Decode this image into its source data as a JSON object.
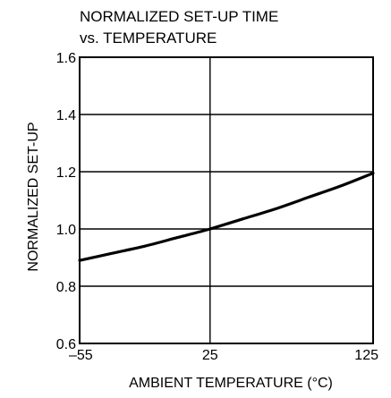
{
  "chart_data": {
    "type": "line",
    "title_line1": "NORMALIZED SET-UP TIME",
    "title_line2": "vs. TEMPERATURE",
    "xlabel": "AMBIENT TEMPERATURE (°C)",
    "ylabel": "NORMALIZED SET-UP",
    "xlim": [
      -55,
      125
    ],
    "ylim": [
      0.6,
      1.6
    ],
    "x_ticks": [
      -55,
      25,
      125
    ],
    "x_tick_labels": [
      "–55",
      "25",
      "125"
    ],
    "y_ticks": [
      0.6,
      0.8,
      1.0,
      1.2,
      1.4,
      1.6
    ],
    "y_tick_labels": [
      "0.6",
      "0.8",
      "1.0",
      "1.2",
      "1.4",
      "1.6"
    ],
    "grid": true,
    "series": [
      {
        "x": [
          -55,
          -35,
          -15,
          5,
          25,
          45,
          65,
          85,
          105,
          125
        ],
        "y": [
          0.89,
          0.915,
          0.94,
          0.97,
          1.0,
          1.035,
          1.07,
          1.11,
          1.15,
          1.195
        ]
      }
    ]
  }
}
